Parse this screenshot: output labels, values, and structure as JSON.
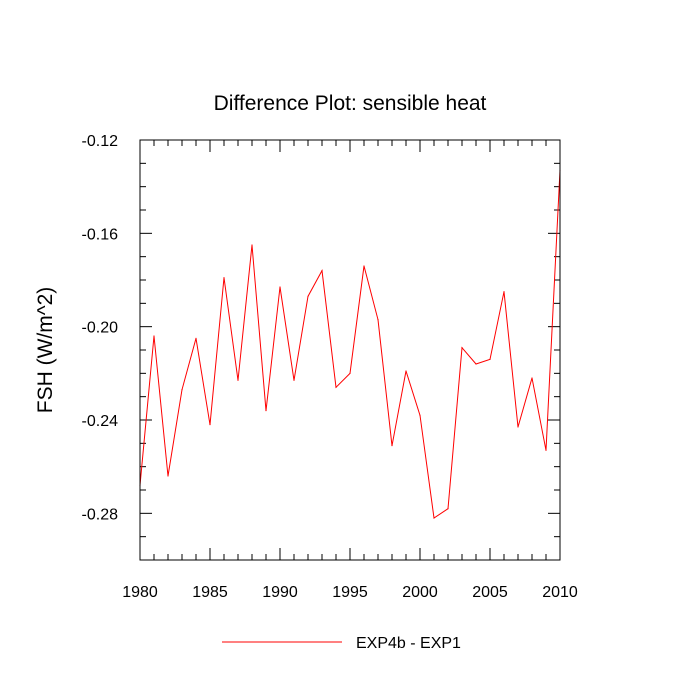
{
  "chart_data": {
    "type": "line",
    "title": "Difference Plot: sensible heat",
    "xlabel": "",
    "ylabel": "FSH  (W/m^2)",
    "xlim": [
      1980,
      2010
    ],
    "ylim": [
      -0.3,
      -0.12
    ],
    "x_ticks": [
      1980,
      1985,
      1990,
      1995,
      2000,
      2005,
      2010
    ],
    "x_tick_labels": [
      "1980",
      "1985",
      "1990",
      "1995",
      "2000",
      "2005",
      "2010"
    ],
    "y_ticks": [
      -0.12,
      -0.16,
      -0.2,
      -0.24,
      -0.28
    ],
    "y_tick_labels": [
      "-0.12",
      "-0.16",
      "-0.20",
      "-0.24",
      "-0.28"
    ],
    "x_minor_step": 1,
    "y_minor_step": 0.01,
    "grid": false,
    "legend_position": "bottom-center",
    "series": [
      {
        "name": "EXP4b - EXP1",
        "color": "#ff0000",
        "x": [
          1980,
          1981,
          1982,
          1983,
          1984,
          1985,
          1986,
          1987,
          1988,
          1989,
          1990,
          1991,
          1992,
          1993,
          1994,
          1995,
          1996,
          1997,
          1998,
          1999,
          2000,
          2001,
          2002,
          2003,
          2004,
          2005,
          2006,
          2007,
          2008,
          2009,
          2010
        ],
        "values": [
          -0.268,
          -0.204,
          -0.264,
          -0.227,
          -0.205,
          -0.242,
          -0.179,
          -0.223,
          -0.165,
          -0.236,
          -0.183,
          -0.223,
          -0.187,
          -0.176,
          -0.226,
          -0.22,
          -0.174,
          -0.197,
          -0.251,
          -0.219,
          -0.238,
          -0.282,
          -0.278,
          -0.209,
          -0.216,
          -0.214,
          -0.185,
          -0.243,
          -0.222,
          -0.253,
          -0.133
        ]
      }
    ]
  }
}
